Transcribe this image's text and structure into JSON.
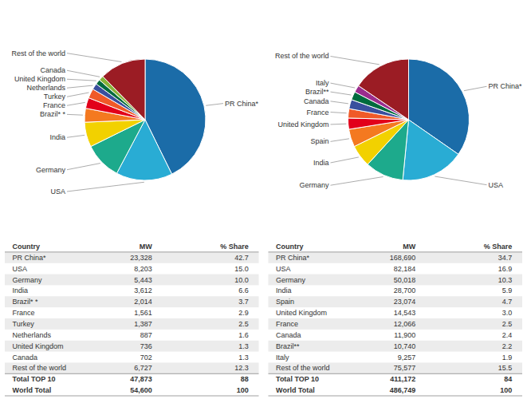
{
  "chart_data": [
    {
      "type": "pie",
      "categories": [
        "PR China*",
        "USA",
        "Germany",
        "India",
        "Brazil* *",
        "France",
        "Turkey",
        "Netherlands",
        "United Kingdom",
        "Canada",
        "Rest of the world"
      ],
      "values": [
        23328,
        8203,
        5443,
        3612,
        2014,
        1561,
        1387,
        887,
        736,
        702,
        6727
      ],
      "colors": [
        "#1b6ca8",
        "#29acd4",
        "#1daa8c",
        "#f2d100",
        "#f47920",
        "#e2001a",
        "#f05a28",
        "#3a4f9e",
        "#006b3e",
        "#8ab43a",
        "#9b1c24"
      ],
      "table": {
        "columns": [
          "Country",
          "MW",
          "% Share"
        ],
        "rows": [
          [
            "PR China*",
            "23,328",
            "42.7"
          ],
          [
            "USA",
            "8,203",
            "15.0"
          ],
          [
            "Germany",
            "5,443",
            "10.0"
          ],
          [
            "India",
            "3,612",
            "6.6"
          ],
          [
            "Brazil* *",
            "2,014",
            "3.7"
          ],
          [
            "France",
            "1,561",
            "2.9"
          ],
          [
            "Turkey",
            "1,387",
            "2.5"
          ],
          [
            "Netherlands",
            "887",
            "1.6"
          ],
          [
            "United Kingdom",
            "736",
            "1.3"
          ],
          [
            "Canada",
            "702",
            "1.3"
          ],
          [
            "Rest of the world",
            "6,727",
            "12.3"
          ],
          [
            "Total TOP 10",
            "47,873",
            "88"
          ],
          [
            "World Total",
            "54,600",
            "100"
          ]
        ]
      }
    },
    {
      "type": "pie",
      "categories": [
        "PR China*",
        "USA",
        "Germany",
        "India",
        "Spain",
        "United Kingdom",
        "France",
        "Canada",
        "Brazil**",
        "Italy",
        "Rest of the world"
      ],
      "values": [
        168690,
        82184,
        50018,
        28700,
        23074,
        14543,
        12066,
        11900,
        10740,
        9257,
        75577
      ],
      "colors": [
        "#1b6ca8",
        "#29acd4",
        "#1daa8c",
        "#f2d100",
        "#f47920",
        "#e2001a",
        "#f05a28",
        "#3a4f9e",
        "#006b3e",
        "#9b2d8e",
        "#9b1c24"
      ],
      "table": {
        "columns": [
          "Country",
          "MW",
          "% Share"
        ],
        "rows": [
          [
            "PR China*",
            "168,690",
            "34.7"
          ],
          [
            "USA",
            "82,184",
            "16.9"
          ],
          [
            "Germany",
            "50,018",
            "10.3"
          ],
          [
            "India",
            "28,700",
            "5.9"
          ],
          [
            "Spain",
            "23,074",
            "4.7"
          ],
          [
            "United Kingdom",
            "14,543",
            "3.0"
          ],
          [
            "France",
            "12,066",
            "2.5"
          ],
          [
            "Canada",
            "11,900",
            "2.4"
          ],
          [
            "Brazil**",
            "10,740",
            "2.2"
          ],
          [
            "Italy",
            "9,257",
            "1.9"
          ],
          [
            "Rest of the world",
            "75,577",
            "15.5"
          ],
          [
            "Total TOP 10",
            "411,172",
            "84"
          ],
          [
            "World Total",
            "486,749",
            "100"
          ]
        ]
      }
    }
  ]
}
